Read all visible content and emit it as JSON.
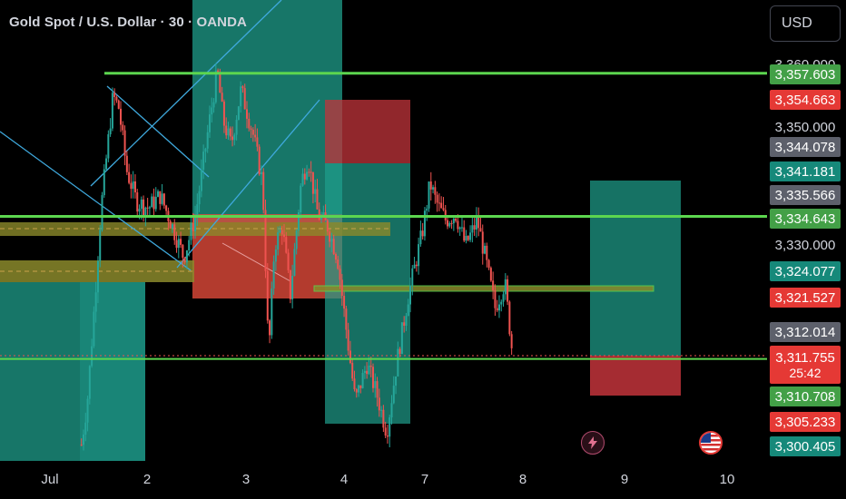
{
  "chart_title": "Gold Spot / U.S. Dollar · 30 · OANDA",
  "currency_button": "USD",
  "countdown": "25:42",
  "colors": {
    "background": "#000000",
    "up_candle": "#26a69a",
    "down_candle": "#ef5350",
    "level_line": "#5cd64f",
    "olive_zone": "#8b8a2b",
    "teal_zone": "#1f9e8b",
    "red_zone": "#c2343b",
    "trend_line": "#3fa9dd"
  },
  "chart_data": {
    "type": "candlestick",
    "symbol": "XAUUSD",
    "timeframe": "30",
    "x_ticks": [
      "Jul",
      "2",
      "3",
      "4",
      "7",
      "8",
      "9",
      "10"
    ],
    "y_ticks": [
      3350.0,
      3330.0
    ],
    "y_range": [
      3297,
      3365
    ],
    "path_points": [
      [
        1.32,
        3298
      ],
      [
        1.38,
        3305
      ],
      [
        1.45,
        3320
      ],
      [
        1.52,
        3336
      ],
      [
        1.58,
        3345
      ],
      [
        1.64,
        3354
      ],
      [
        1.7,
        3352
      ],
      [
        1.78,
        3342
      ],
      [
        1.88,
        3337
      ],
      [
        2.0,
        3336
      ],
      [
        2.12,
        3338
      ],
      [
        2.22,
        3334
      ],
      [
        2.36,
        3328
      ],
      [
        2.48,
        3335
      ],
      [
        2.62,
        3350
      ],
      [
        2.7,
        3358
      ],
      [
        2.76,
        3350
      ],
      [
        2.84,
        3346
      ],
      [
        2.94,
        3355
      ],
      [
        3.06,
        3348
      ],
      [
        3.16,
        3340
      ],
      [
        3.2,
        3322
      ],
      [
        3.22,
        3312
      ],
      [
        3.28,
        3330
      ],
      [
        3.36,
        3333
      ],
      [
        3.44,
        3322
      ],
      [
        3.55,
        3340
      ],
      [
        3.62,
        3344
      ],
      [
        3.72,
        3335
      ],
      [
        3.82,
        3333
      ],
      [
        3.92,
        3328
      ],
      [
        4.02,
        3315
      ],
      [
        4.1,
        3305
      ],
      [
        4.22,
        3311
      ],
      [
        4.32,
        3306
      ],
      [
        4.42,
        3300
      ],
      [
        4.52,
        3311
      ],
      [
        4.64,
        3322
      ],
      [
        4.78,
        3332
      ],
      [
        4.86,
        3340
      ],
      [
        4.92,
        3337
      ],
      [
        5.02,
        3334
      ],
      [
        5.12,
        3335
      ],
      [
        5.22,
        3330
      ],
      [
        5.34,
        3334
      ],
      [
        5.42,
        3328
      ],
      [
        5.52,
        3320
      ],
      [
        5.62,
        3324
      ],
      [
        5.7,
        3312
      ]
    ],
    "horizontal_levels": [
      3357.603,
      3334.643,
      3311.755
    ],
    "price_labels": [
      {
        "value": "3,357.603",
        "color": "#43a047"
      },
      {
        "value": "3,354.663",
        "color": "#e53935"
      },
      {
        "value": "3,344.078",
        "color": "#5d606b"
      },
      {
        "value": "3,341.181",
        "color": "#16897a"
      },
      {
        "value": "3,335.566",
        "color": "#5d606b"
      },
      {
        "value": "3,334.643",
        "color": "#43a047"
      },
      {
        "value": "3,324.077",
        "color": "#16897a"
      },
      {
        "value": "3,321.527",
        "color": "#e53935"
      },
      {
        "value": "3,312.014",
        "color": "#5d606b"
      },
      {
        "value": "3,311.755",
        "color": "#e53935"
      },
      {
        "value": "3,310.708",
        "color": "#43a047"
      },
      {
        "value": "3,305.233",
        "color": "#e53935"
      },
      {
        "value": "3,300.405",
        "color": "#16897a"
      }
    ],
    "grid": false
  }
}
